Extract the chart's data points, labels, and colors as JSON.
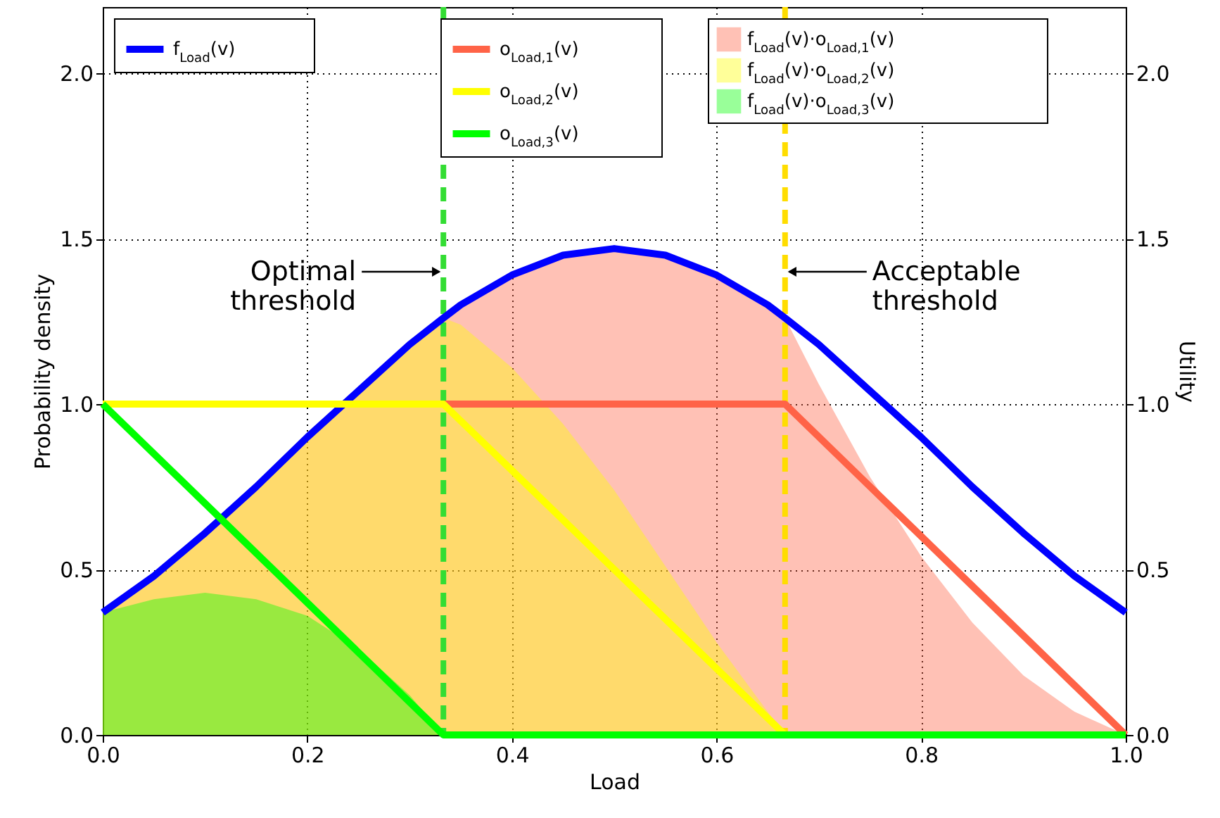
{
  "chart_data": {
    "type": "line",
    "xlabel": "Load",
    "ylabel": "Probability density",
    "y2label": "Utility",
    "x": [
      0,
      0.05,
      0.1,
      0.15,
      0.2,
      0.25,
      0.3,
      0.333,
      0.35,
      0.4,
      0.45,
      0.5,
      0.55,
      0.6,
      0.65,
      0.667,
      0.7,
      0.75,
      0.8,
      0.85,
      0.9,
      0.95,
      1.0
    ],
    "series": [
      {
        "name": "f$_{Load}$(v)·o$_{Load,1}$(v)",
        "type": "area",
        "color": "#ff6347",
        "values": [
          0.37,
          0.48,
          0.61,
          0.75,
          0.9,
          1.04,
          1.18,
          1.26,
          1.3,
          1.39,
          1.45,
          1.47,
          1.45,
          1.39,
          1.3,
          1.26,
          1.06,
          0.78,
          0.54,
          0.34,
          0.18,
          0.07,
          0
        ]
      },
      {
        "name": "f$_{Load}$(v)·o$_{Load,2}$(v)",
        "type": "area",
        "color": "#ffff00",
        "values": [
          0.37,
          0.48,
          0.61,
          0.75,
          0.9,
          1.04,
          1.18,
          1.26,
          1.24,
          1.11,
          0.94,
          0.74,
          0.51,
          0.28,
          0.07,
          0,
          0,
          0,
          0,
          0,
          0,
          0,
          0
        ]
      },
      {
        "name": "f$_{Load}$(v)·o$_{Load,3}$(v)",
        "type": "area",
        "color": "#00ff00",
        "values": [
          0.37,
          0.41,
          0.43,
          0.41,
          0.36,
          0.26,
          0.12,
          0,
          0,
          0,
          0,
          0,
          0,
          0,
          0,
          0,
          0,
          0,
          0,
          0,
          0,
          0,
          0
        ]
      },
      {
        "name": "f$_{Load}$(v)",
        "color": "#0000ff",
        "values": [
          0.37,
          0.48,
          0.61,
          0.75,
          0.9,
          1.04,
          1.18,
          1.26,
          1.3,
          1.39,
          1.45,
          1.47,
          1.45,
          1.39,
          1.3,
          1.26,
          1.18,
          1.04,
          0.9,
          0.75,
          0.61,
          0.48,
          0.37
        ]
      },
      {
        "name": "o$_{Load,1}$(v)",
        "axis": "y2",
        "color": "#ff6347",
        "x": [
          0,
          0.667,
          1.0
        ],
        "values": [
          1,
          1,
          0
        ]
      },
      {
        "name": "o$_{Load,2}$(v)",
        "axis": "y2",
        "color": "#ffff00",
        "x": [
          0,
          0.333,
          0.667,
          1.0
        ],
        "values": [
          1,
          1,
          0,
          0
        ]
      },
      {
        "name": "o$_{Load,3}$(v)",
        "axis": "y2",
        "color": "#00ff00",
        "x": [
          0,
          0.333,
          1.0
        ],
        "values": [
          1,
          0,
          0
        ]
      }
    ],
    "ref_lines": [
      {
        "axis": "x",
        "value": 0.333,
        "color": "#33dd33",
        "line_style": "dashed"
      },
      {
        "axis": "x",
        "value": 0.667,
        "color": "#ffdd00",
        "line_style": "dashed"
      }
    ],
    "annotations": [
      {
        "text": "Optimal threshold",
        "x": 0.333,
        "y": 1.4
      },
      {
        "text": "Acceptable threshold",
        "x": 0.667,
        "y": 1.4
      }
    ],
    "xlim": [
      0,
      1.0
    ],
    "ylim": [
      0,
      2.2
    ],
    "y2lim": [
      0,
      2.2
    ],
    "xticks": [
      {
        "value": 0,
        "label": "0.0"
      },
      0.2,
      0.4,
      0.6,
      0.8,
      {
        "value": 1,
        "label": "1.0"
      }
    ],
    "yticks": [
      {
        "value": 0,
        "label": "0.0"
      },
      0.5,
      {
        "value": 1,
        "label": "1.0"
      },
      1.5,
      {
        "value": 2,
        "label": "2.0"
      }
    ],
    "y2ticks": [
      {
        "value": 0,
        "label": "0.0"
      },
      0.5,
      {
        "value": 1,
        "label": "1.0"
      },
      1.5,
      {
        "value": 2,
        "label": "2.0"
      }
    ],
    "grid": true,
    "legend": "top"
  }
}
